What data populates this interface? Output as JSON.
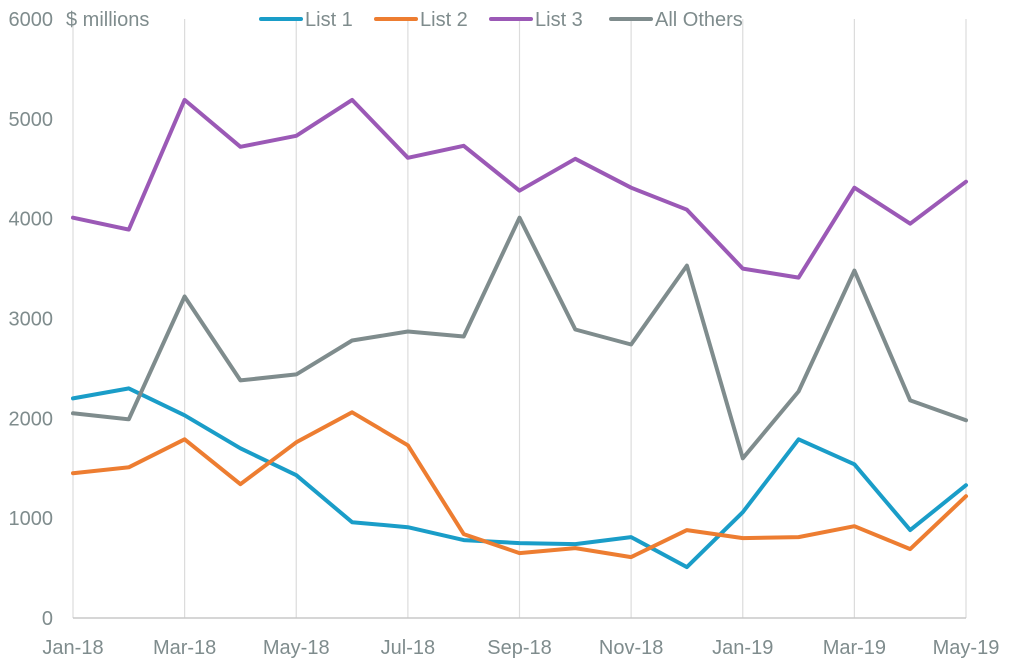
{
  "chart_data": {
    "type": "line",
    "unit_label": "$ millions",
    "x": [
      "Jan-18",
      "Feb-18",
      "Mar-18",
      "Apr-18",
      "May-18",
      "Jun-18",
      "Jul-18",
      "Aug-18",
      "Sep-18",
      "Oct-18",
      "Nov-18",
      "Dec-18",
      "Jan-19",
      "Feb-19",
      "Mar-19",
      "Apr-19",
      "May-19"
    ],
    "x_tick_labels": [
      "Jan-18",
      "Mar-18",
      "May-18",
      "Jul-18",
      "Sep-18",
      "Nov-18",
      "Jan-19",
      "Mar-19",
      "May-19"
    ],
    "ylim": [
      0,
      6000
    ],
    "y_ticks": [
      0,
      1000,
      2000,
      3000,
      4000,
      5000,
      6000
    ],
    "grid": "vertical",
    "legend_position": "top",
    "series": [
      {
        "name": "List 1",
        "color": "#1a9dc8",
        "values": [
          2200,
          2300,
          2030,
          1700,
          1430,
          960,
          910,
          780,
          750,
          740,
          810,
          510,
          1060,
          1790,
          1540,
          880,
          1330
        ]
      },
      {
        "name": "List 2",
        "color": "#ed7d31",
        "values": [
          1450,
          1510,
          1790,
          1340,
          1760,
          2060,
          1730,
          840,
          650,
          700,
          610,
          880,
          800,
          810,
          920,
          690,
          1220
        ]
      },
      {
        "name": "List 3",
        "color": "#9b59b6",
        "values": [
          4010,
          3890,
          5190,
          4720,
          4830,
          5190,
          4610,
          4730,
          4280,
          4600,
          4310,
          4090,
          3500,
          3410,
          4310,
          3950,
          4370
        ]
      },
      {
        "name": "All Others",
        "color": "#7f8c8d",
        "values": [
          2050,
          1990,
          3220,
          2380,
          2440,
          2780,
          2870,
          2820,
          4010,
          2890,
          2740,
          3530,
          1600,
          2270,
          3480,
          2180,
          1980
        ]
      }
    ]
  }
}
